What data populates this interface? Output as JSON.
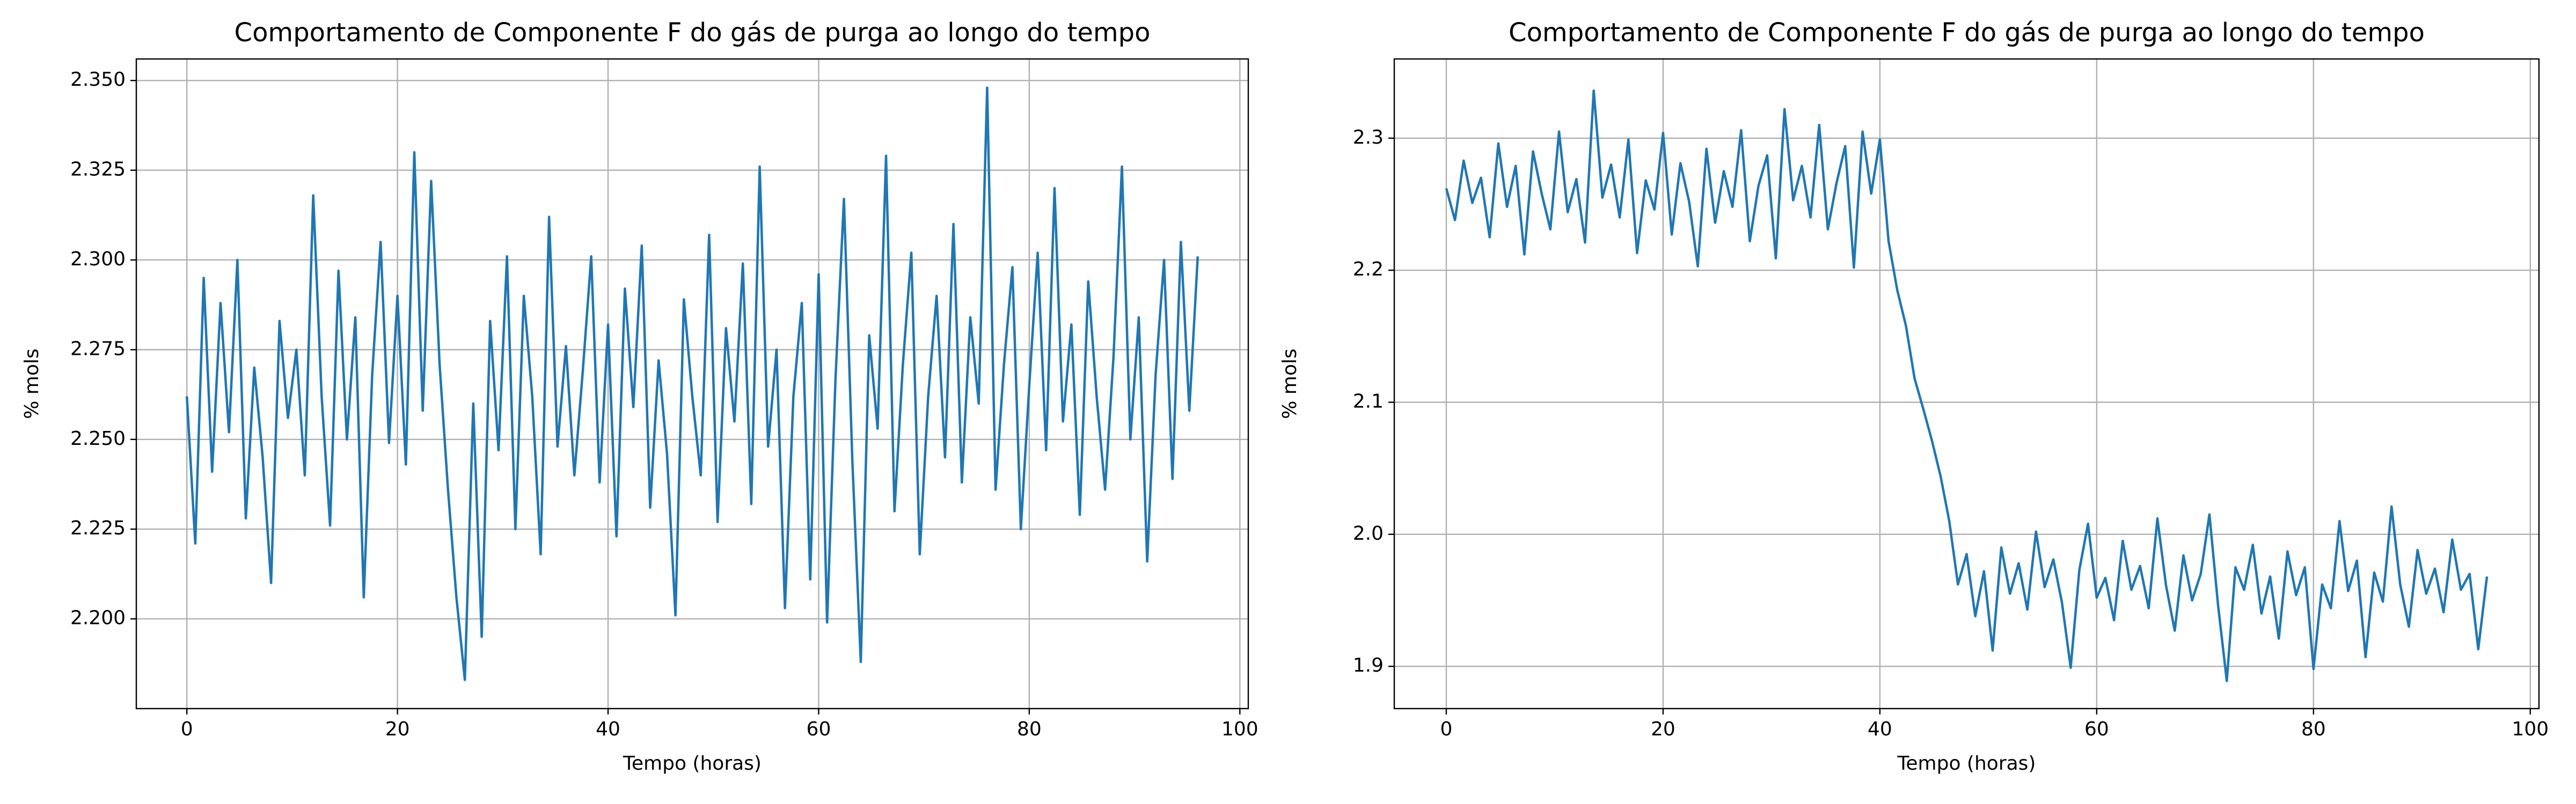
{
  "chart_data": [
    {
      "type": "line",
      "title": "Comportamento de Componente F do gás de purga ao longo do tempo",
      "xlabel": "Tempo (horas)",
      "ylabel": "% mols",
      "color": "#1f77b4",
      "grid": true,
      "xlim": [
        -4.8,
        100.8
      ],
      "xticks": [
        0,
        20,
        40,
        60,
        80,
        100
      ],
      "ylim": [
        2.175,
        2.356
      ],
      "yticks": [
        {
          "value": 2.2,
          "label": "2.200"
        },
        2.225,
        {
          "value": 2.25,
          "label": "2.250"
        },
        2.275,
        {
          "value": 2.3,
          "label": "2.300"
        },
        2.325,
        {
          "value": 2.35,
          "label": "2.350"
        }
      ],
      "x": [
        0,
        0.8,
        1.6,
        2.4,
        3.2,
        4,
        4.8,
        5.6,
        6.4,
        7.2,
        8,
        8.8,
        9.6,
        10.4,
        11.2,
        12,
        12.8,
        13.6,
        14.4,
        15.2,
        16,
        16.8,
        17.6,
        18.4,
        19.2,
        20,
        20.8,
        21.6,
        22.4,
        23.2,
        24,
        24.8,
        25.6,
        26.4,
        27.2,
        28,
        28.8,
        29.6,
        30.4,
        31.2,
        32,
        32.8,
        33.6,
        34.4,
        35.2,
        36,
        36.8,
        37.6,
        38.4,
        39.2,
        40,
        40.8,
        41.6,
        42.4,
        43.2,
        44,
        44.8,
        45.6,
        46.4,
        47.2,
        48,
        48.8,
        49.6,
        50.4,
        51.2,
        52,
        52.8,
        53.6,
        54.4,
        55.2,
        56,
        56.8,
        57.6,
        58.4,
        59.2,
        60,
        60.8,
        61.6,
        62.4,
        63.2,
        64,
        64.8,
        65.6,
        66.4,
        67.2,
        68,
        68.8,
        69.6,
        70.4,
        71.2,
        72,
        72.8,
        73.6,
        74.4,
        75.2,
        76,
        76.8,
        77.6,
        78.4,
        79.2,
        80,
        80.8,
        81.6,
        82.4,
        83.2,
        84,
        84.8,
        85.6,
        86.4,
        87.2,
        88,
        88.8,
        89.6,
        90.4,
        91.2,
        92,
        92.8,
        93.6,
        94.4,
        95.2,
        96
      ],
      "values": [
        2.262,
        2.221,
        2.295,
        2.241,
        2.288,
        2.252,
        2.3,
        2.228,
        2.27,
        2.245,
        2.21,
        2.283,
        2.256,
        2.275,
        2.24,
        2.318,
        2.262,
        2.226,
        2.297,
        2.25,
        2.284,
        2.206,
        2.268,
        2.305,
        2.249,
        2.29,
        2.243,
        2.33,
        2.258,
        2.322,
        2.271,
        2.236,
        2.206,
        2.183,
        2.26,
        2.195,
        2.283,
        2.247,
        2.301,
        2.225,
        2.29,
        2.262,
        2.218,
        2.312,
        2.248,
        2.276,
        2.24,
        2.269,
        2.301,
        2.238,
        2.282,
        2.223,
        2.292,
        2.259,
        2.304,
        2.231,
        2.272,
        2.246,
        2.201,
        2.289,
        2.262,
        2.24,
        2.307,
        2.227,
        2.281,
        2.255,
        2.299,
        2.232,
        2.326,
        2.248,
        2.275,
        2.203,
        2.262,
        2.288,
        2.211,
        2.296,
        2.199,
        2.267,
        2.317,
        2.244,
        2.188,
        2.279,
        2.253,
        2.329,
        2.23,
        2.271,
        2.302,
        2.218,
        2.262,
        2.29,
        2.245,
        2.31,
        2.238,
        2.284,
        2.26,
        2.348,
        2.236,
        2.271,
        2.298,
        2.225,
        2.265,
        2.302,
        2.247,
        2.32,
        2.255,
        2.282,
        2.229,
        2.294,
        2.262,
        2.236,
        2.273,
        2.326,
        2.25,
        2.284,
        2.216,
        2.268,
        2.3,
        2.239,
        2.305,
        2.258,
        2.301
      ]
    },
    {
      "type": "line",
      "title": "Comportamento de Componente F do gás de purga ao longo do tempo",
      "xlabel": "Tempo (horas)",
      "ylabel": "% mols",
      "color": "#1f77b4",
      "grid": true,
      "xlim": [
        -4.8,
        100.8
      ],
      "xticks": [
        0,
        20,
        40,
        60,
        80,
        100
      ],
      "ylim": [
        1.868,
        2.36
      ],
      "yticks": [
        1.9,
        {
          "value": 2,
          "label": "2.0"
        },
        2.1,
        2.2,
        2.3
      ],
      "x": [
        0,
        0.8,
        1.6,
        2.4,
        3.2,
        4,
        4.8,
        5.6,
        6.4,
        7.2,
        8,
        8.8,
        9.6,
        10.4,
        11.2,
        12,
        12.8,
        13.6,
        14.4,
        15.2,
        16,
        16.8,
        17.6,
        18.4,
        19.2,
        20,
        20.8,
        21.6,
        22.4,
        23.2,
        24,
        24.8,
        25.6,
        26.4,
        27.2,
        28,
        28.8,
        29.6,
        30.4,
        31.2,
        32,
        32.8,
        33.6,
        34.4,
        35.2,
        36,
        36.8,
        37.6,
        38.4,
        39.2,
        40,
        40.8,
        41.6,
        42.4,
        43.2,
        44,
        44.8,
        45.6,
        46.4,
        47.2,
        48,
        48.8,
        49.6,
        50.4,
        51.2,
        52,
        52.8,
        53.6,
        54.4,
        55.2,
        56,
        56.8,
        57.6,
        58.4,
        59.2,
        60,
        60.8,
        61.6,
        62.4,
        63.2,
        64,
        64.8,
        65.6,
        66.4,
        67.2,
        68,
        68.8,
        69.6,
        70.4,
        71.2,
        72,
        72.8,
        73.6,
        74.4,
        75.2,
        76,
        76.8,
        77.6,
        78.4,
        79.2,
        80,
        80.8,
        81.6,
        82.4,
        83.2,
        84,
        84.8,
        85.6,
        86.4,
        87.2,
        88,
        88.8,
        89.6,
        90.4,
        91.2,
        92,
        92.8,
        93.6,
        94.4,
        95.2,
        96
      ],
      "values": [
        2.262,
        2.238,
        2.283,
        2.251,
        2.27,
        2.225,
        2.296,
        2.248,
        2.279,
        2.212,
        2.29,
        2.258,
        2.231,
        2.305,
        2.244,
        2.269,
        2.221,
        2.336,
        2.255,
        2.28,
        2.24,
        2.299,
        2.213,
        2.268,
        2.246,
        2.304,
        2.227,
        2.281,
        2.252,
        2.203,
        2.292,
        2.236,
        2.275,
        2.248,
        2.306,
        2.222,
        2.264,
        2.287,
        2.209,
        2.322,
        2.253,
        2.279,
        2.24,
        2.31,
        2.231,
        2.266,
        2.294,
        2.202,
        2.305,
        2.258,
        2.299,
        2.222,
        2.185,
        2.158,
        2.118,
        2.095,
        2.071,
        2.044,
        2.01,
        1.962,
        1.985,
        1.938,
        1.972,
        1.912,
        1.99,
        1.955,
        1.978,
        1.943,
        2.002,
        1.96,
        1.981,
        1.948,
        1.899,
        1.973,
        2.008,
        1.952,
        1.967,
        1.935,
        1.995,
        1.958,
        1.976,
        1.944,
        2.012,
        1.961,
        1.927,
        1.984,
        1.95,
        1.97,
        2.015,
        1.946,
        1.889,
        1.975,
        1.958,
        1.992,
        1.94,
        1.968,
        1.921,
        1.987,
        1.954,
        1.975,
        1.898,
        1.962,
        1.944,
        2.01,
        1.957,
        1.98,
        1.907,
        1.971,
        1.949,
        2.021,
        1.962,
        1.93,
        1.988,
        1.955,
        1.974,
        1.941,
        1.996,
        1.958,
        1.97,
        1.913,
        1.968
      ]
    }
  ]
}
